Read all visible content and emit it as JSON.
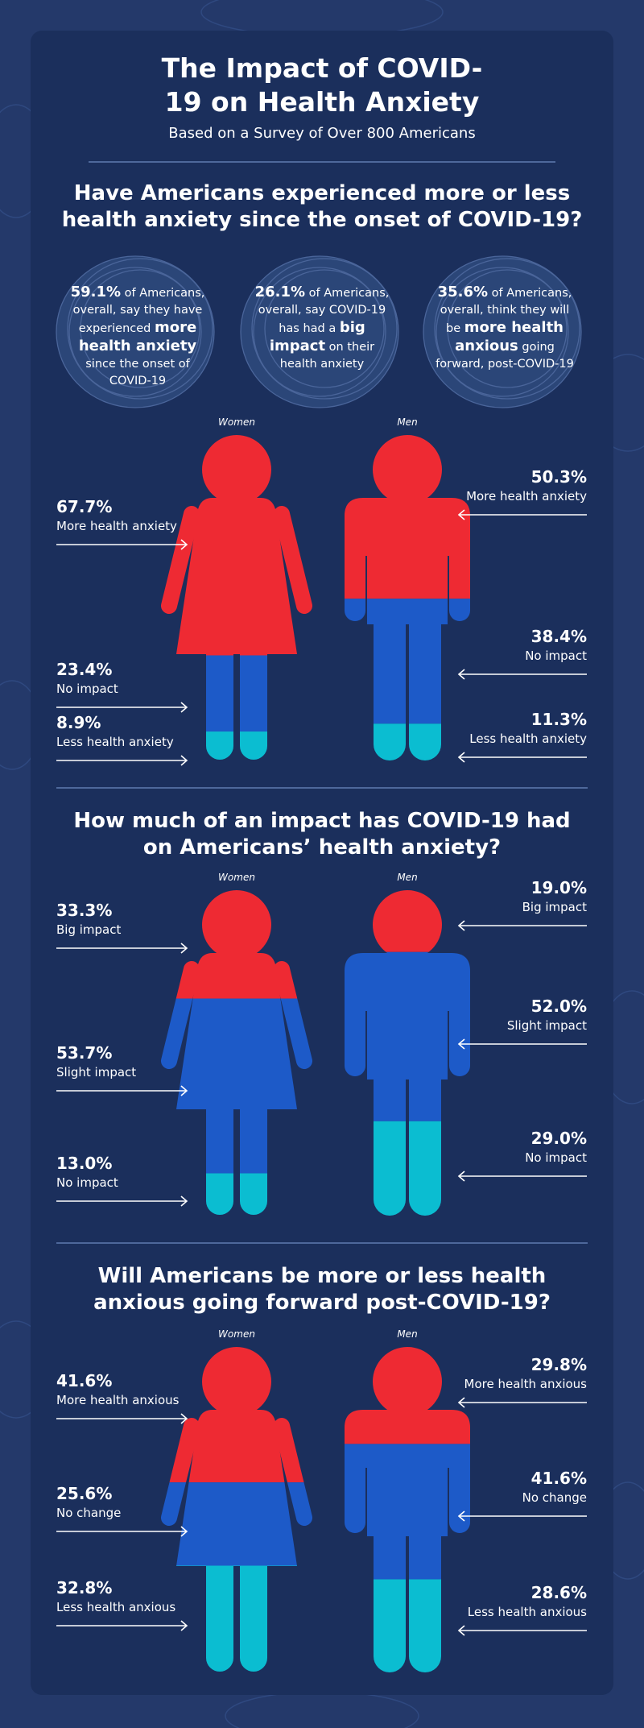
{
  "header": {
    "title": "The Impact of COVID-19 on Health Anxiety",
    "subtitle": "Based on a Survey of Over 800 Americans"
  },
  "colors": [
    "#ee2a33",
    "#1d5ac8",
    "#0bbdd1"
  ],
  "stats": [
    {
      "parts": [
        {
          "text": "59.1%",
          "bold": true
        },
        {
          "text": " of Americans, overall, say they have experienced ",
          "bold": false
        },
        {
          "text": "more health anxiety",
          "bold": true
        },
        {
          "text": " since the onset of COVID-19",
          "bold": false
        }
      ]
    },
    {
      "parts": [
        {
          "text": "26.1%",
          "bold": true
        },
        {
          "text": " of Americans, overall, say COVID-19 has had a ",
          "bold": false
        },
        {
          "text": "big impact",
          "bold": true
        },
        {
          "text": " on their health anxiety",
          "bold": false
        }
      ]
    },
    {
      "parts": [
        {
          "text": "35.6%",
          "bold": true
        },
        {
          "text": " of Americans, overall, think they will be ",
          "bold": false
        },
        {
          "text": "more health anxious",
          "bold": true
        },
        {
          "text": " going forward, post-COVID-19",
          "bold": false
        }
      ]
    }
  ],
  "sections": [
    {
      "heading": "Have Americans experienced more or less health anxiety since the onset of COVID-19?",
      "women_label": "Women",
      "men_label": "Men",
      "women": [
        {
          "value": 67.7,
          "value_label": "67.7%",
          "label": "More health anxiety"
        },
        {
          "value": 23.4,
          "value_label": "23.4%",
          "label": "No impact"
        },
        {
          "value": 8.9,
          "value_label": "8.9%",
          "label": "Less health anxiety"
        }
      ],
      "men": [
        {
          "value": 50.3,
          "value_label": "50.3%",
          "label": "More health anxiety"
        },
        {
          "value": 38.4,
          "value_label": "38.4%",
          "label": "No impact"
        },
        {
          "value": 11.3,
          "value_label": "11.3%",
          "label": "Less health anxiety"
        }
      ]
    },
    {
      "heading": "How much of an impact has COVID-19 had on Americans’ health anxiety?",
      "women_label": "Women",
      "men_label": "Men",
      "women": [
        {
          "value": 33.3,
          "value_label": "33.3%",
          "label": "Big impact"
        },
        {
          "value": 53.7,
          "value_label": "53.7%",
          "label": "Slight impact"
        },
        {
          "value": 13.0,
          "value_label": "13.0%",
          "label": "No impact"
        }
      ],
      "men": [
        {
          "value": 19.0,
          "value_label": "19.0%",
          "label": "Big impact"
        },
        {
          "value": 52.0,
          "value_label": "52.0%",
          "label": "Slight impact"
        },
        {
          "value": 29.0,
          "value_label": "29.0%",
          "label": "No impact"
        }
      ]
    },
    {
      "heading": "Will Americans be more or less health anxious going forward post-COVID-19?",
      "women_label": "Women",
      "men_label": "Men",
      "women": [
        {
          "value": 41.6,
          "value_label": "41.6%",
          "label": "More health anxious"
        },
        {
          "value": 25.6,
          "value_label": "25.6%",
          "label": "No change"
        },
        {
          "value": 32.8,
          "value_label": "32.8%",
          "label": "Less health anxious"
        }
      ],
      "men": [
        {
          "value": 29.8,
          "value_label": "29.8%",
          "label": "More health anxious"
        },
        {
          "value": 41.6,
          "value_label": "41.6%",
          "label": "No change"
        },
        {
          "value": 28.6,
          "value_label": "28.6%",
          "label": "Less health anxious"
        }
      ]
    }
  ]
}
